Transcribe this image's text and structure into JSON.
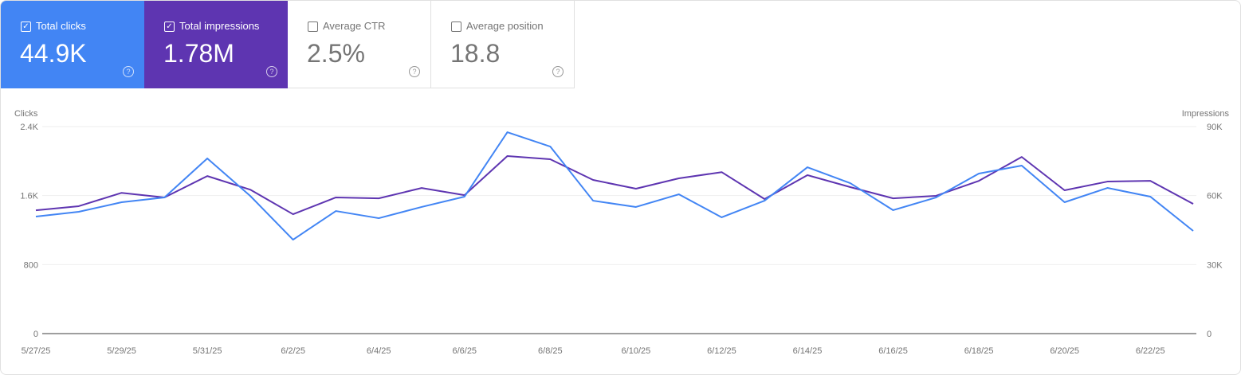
{
  "tiles": [
    {
      "label": "Total clicks",
      "value": "44.9K",
      "checked": true,
      "color": "#4285f4"
    },
    {
      "label": "Total impressions",
      "value": "1.78M",
      "checked": true,
      "color": "#5e35b1"
    },
    {
      "label": "Average CTR",
      "value": "2.5%",
      "checked": false
    },
    {
      "label": "Average position",
      "value": "18.8",
      "checked": false
    }
  ],
  "chart_data": {
    "type": "line",
    "left_axis": {
      "label": "Clicks",
      "ticks": [
        "0",
        "800",
        "1.6K",
        "2.4K"
      ],
      "range": [
        0,
        2400
      ]
    },
    "right_axis": {
      "label": "Impressions",
      "ticks": [
        "0",
        "30K",
        "60K",
        "90K"
      ],
      "range": [
        0,
        90000
      ]
    },
    "x": [
      "5/27/25",
      "5/28/25",
      "5/29/25",
      "5/30/25",
      "5/31/25",
      "6/1/25",
      "6/2/25",
      "6/3/25",
      "6/4/25",
      "6/5/25",
      "6/6/25",
      "6/7/25",
      "6/8/25",
      "6/9/25",
      "6/10/25",
      "6/11/25",
      "6/12/25",
      "6/13/25",
      "6/14/25",
      "6/15/25",
      "6/16/25",
      "6/17/25",
      "6/18/25",
      "6/19/25",
      "6/20/25",
      "6/21/25",
      "6/22/25",
      "6/23/25"
    ],
    "x_tick_labels": [
      "5/27/25",
      "5/29/25",
      "5/31/25",
      "6/2/25",
      "6/4/25",
      "6/6/25",
      "6/8/25",
      "6/10/25",
      "6/12/25",
      "6/14/25",
      "6/16/25",
      "6/18/25",
      "6/20/25",
      "6/22/25"
    ],
    "grid": true,
    "series": [
      {
        "name": "Clicks",
        "axis": "left",
        "color": "#4285f4",
        "values": [
          1357,
          1412,
          1523,
          1578,
          2031,
          1597,
          1089,
          1421,
          1338,
          1468,
          1588,
          2335,
          2169,
          1541,
          1468,
          1615,
          1348,
          1541,
          1929,
          1744,
          1431,
          1578,
          1855,
          1948,
          1523,
          1689,
          1588,
          1191
        ]
      },
      {
        "name": "Impressions",
        "axis": "right",
        "color": "#5e35b1",
        "values": [
          53600,
          55400,
          61200,
          59200,
          68500,
          62600,
          51900,
          59200,
          58800,
          63300,
          60200,
          77200,
          75800,
          66800,
          63000,
          67500,
          70200,
          58500,
          68900,
          63700,
          58800,
          59900,
          66400,
          76800,
          62300,
          66100,
          66400,
          56400
        ]
      }
    ]
  }
}
